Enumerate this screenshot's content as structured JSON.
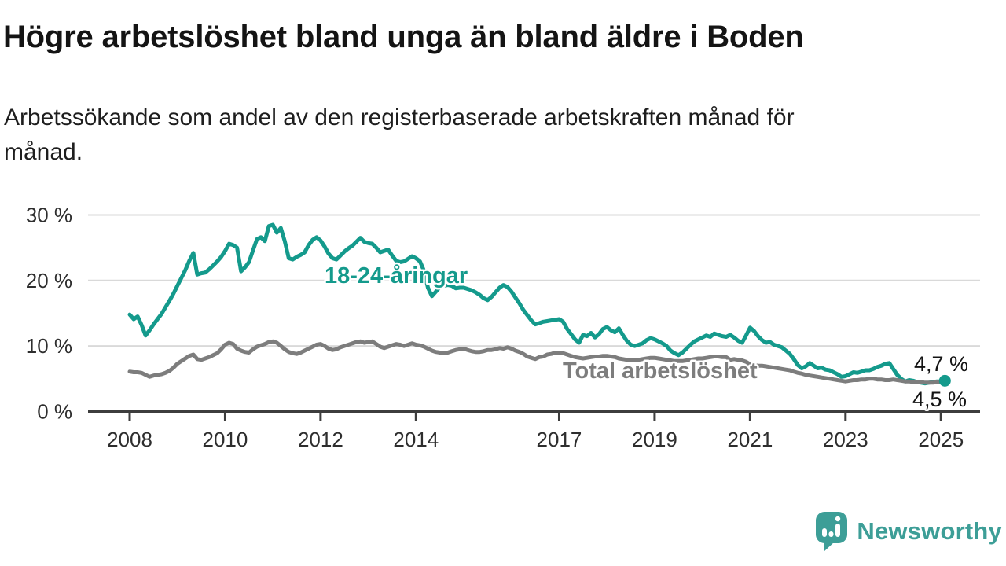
{
  "header": {
    "title": "Högre arbetslöshet bland unga än bland äldre i Boden",
    "subtitle": "Arbetssökande som andel av den registerbaserade arbetskraften månad för\nmånad."
  },
  "logo": {
    "text": "Newsworthy",
    "color": "#3d9e97",
    "icon": "speech-bubble-bar-chart"
  },
  "chart_data": {
    "type": "line",
    "title": "Högre arbetslöshet bland unga än bland äldre i Boden",
    "xlabel": "",
    "ylabel": "Arbetssökande som andel av den registerbaserade arbetskraften",
    "x_axis": {
      "unit": "year",
      "ticks": [
        2008,
        2010,
        2012,
        2014,
        2017,
        2019,
        2021,
        2023,
        2025
      ],
      "range": [
        2007.1,
        2025.85
      ]
    },
    "y_axis": {
      "unit": "percent",
      "ticks": [
        0,
        10,
        20,
        30
      ],
      "tick_labels": [
        "0 %",
        "10 %",
        "20 %",
        "30 %"
      ],
      "range": [
        0,
        31.5
      ],
      "grid": true
    },
    "frequency": "monthly",
    "start_year": 2008,
    "points_per_year": 12,
    "series": [
      {
        "name": "18-24-åringar",
        "color": "#149a8c",
        "end_label": "4,7 %",
        "end_dot": true,
        "values": [
          14.8,
          14.1,
          14.5,
          13.2,
          11.6,
          12.4,
          13.3,
          14.1,
          14.9,
          15.9,
          16.9,
          18.0,
          19.2,
          20.4,
          21.6,
          23.0,
          24.2,
          20.9,
          21.1,
          21.2,
          21.7,
          22.3,
          22.9,
          23.6,
          24.5,
          25.6,
          25.4,
          25.0,
          21.4,
          22.0,
          22.8,
          24.6,
          26.3,
          26.6,
          26.0,
          28.3,
          28.5,
          27.3,
          28.0,
          26.0,
          23.4,
          23.2,
          23.6,
          23.9,
          24.3,
          25.4,
          26.2,
          26.6,
          26.1,
          25.2,
          24.1,
          23.4,
          23.2,
          23.8,
          24.4,
          24.9,
          25.3,
          25.9,
          26.5,
          25.9,
          25.7,
          25.6,
          25.0,
          24.3,
          24.5,
          24.7,
          23.8,
          23.0,
          22.8,
          22.9,
          23.3,
          23.7,
          23.4,
          22.9,
          21.5,
          18.9,
          17.6,
          18.3,
          19.0,
          19.2,
          19.3,
          19.2,
          18.8,
          18.9,
          18.9,
          18.7,
          18.5,
          18.2,
          17.8,
          17.3,
          17.0,
          17.5,
          18.2,
          18.9,
          19.3,
          19.0,
          18.3,
          17.4,
          16.5,
          15.5,
          14.7,
          13.9,
          13.3,
          13.5,
          13.7,
          13.8,
          13.9,
          14.0,
          14.1,
          13.7,
          12.6,
          11.8,
          11.0,
          10.5,
          11.7,
          11.5,
          12.0,
          11.3,
          11.8,
          12.6,
          12.9,
          12.4,
          12.1,
          12.7,
          11.7,
          10.8,
          10.2,
          10.0,
          10.2,
          10.4,
          10.9,
          11.2,
          11.0,
          10.7,
          10.4,
          10.0,
          9.3,
          8.9,
          8.6,
          9.0,
          9.6,
          10.2,
          10.7,
          11.0,
          11.3,
          11.6,
          11.4,
          11.9,
          11.7,
          11.5,
          11.4,
          11.7,
          11.3,
          10.8,
          10.5,
          11.6,
          12.8,
          12.3,
          11.5,
          10.9,
          10.5,
          10.6,
          10.2,
          10.0,
          9.8,
          9.3,
          8.8,
          8.0,
          7.1,
          6.6,
          6.9,
          7.4,
          7.0,
          6.6,
          6.7,
          6.4,
          6.3,
          6.0,
          5.7,
          5.3,
          5.4,
          5.7,
          6.0,
          5.9,
          6.1,
          6.3,
          6.3,
          6.5,
          6.8,
          7.0,
          7.3,
          7.4,
          6.5,
          5.6,
          5.0,
          4.6,
          4.8,
          4.7,
          4.5,
          4.4,
          4.3,
          4.4,
          4.5,
          4.6,
          4.6,
          4.7
        ]
      },
      {
        "name": "Total arbetslöshet",
        "color": "#7d7d7d",
        "end_label": "4,5 %",
        "end_dot": false,
        "values": [
          6.1,
          6.0,
          6.0,
          5.9,
          5.6,
          5.3,
          5.5,
          5.6,
          5.7,
          5.9,
          6.2,
          6.7,
          7.3,
          7.7,
          8.1,
          8.5,
          8.7,
          8.0,
          7.9,
          8.1,
          8.3,
          8.6,
          8.9,
          9.5,
          10.2,
          10.5,
          10.3,
          9.6,
          9.3,
          9.1,
          9.0,
          9.5,
          9.9,
          10.1,
          10.3,
          10.6,
          10.7,
          10.5,
          10.0,
          9.5,
          9.1,
          8.9,
          8.8,
          9.0,
          9.3,
          9.6,
          9.9,
          10.2,
          10.3,
          10.0,
          9.6,
          9.4,
          9.5,
          9.8,
          10.0,
          10.2,
          10.4,
          10.6,
          10.7,
          10.5,
          10.6,
          10.7,
          10.3,
          9.9,
          9.7,
          9.9,
          10.1,
          10.3,
          10.2,
          10.0,
          10.2,
          10.4,
          10.2,
          10.1,
          9.9,
          9.6,
          9.3,
          9.1,
          9.0,
          8.9,
          9.0,
          9.2,
          9.4,
          9.5,
          9.6,
          9.4,
          9.2,
          9.1,
          9.1,
          9.2,
          9.4,
          9.4,
          9.5,
          9.7,
          9.6,
          9.8,
          9.6,
          9.3,
          9.1,
          8.8,
          8.4,
          8.2,
          8.0,
          8.3,
          8.4,
          8.7,
          8.8,
          9.0,
          9.0,
          8.9,
          8.7,
          8.5,
          8.3,
          8.2,
          8.1,
          8.2,
          8.3,
          8.4,
          8.4,
          8.5,
          8.5,
          8.4,
          8.3,
          8.1,
          8.0,
          7.9,
          7.8,
          7.8,
          7.9,
          8.0,
          8.1,
          8.2,
          8.2,
          8.1,
          8.0,
          7.9,
          7.8,
          7.7,
          7.7,
          7.7,
          7.8,
          7.9,
          8.0,
          8.1,
          8.1,
          8.2,
          8.3,
          8.4,
          8.4,
          8.3,
          8.3,
          7.9,
          8.0,
          7.9,
          7.8,
          7.6,
          7.2,
          7.1,
          7.0,
          7.0,
          6.9,
          6.8,
          6.7,
          6.6,
          6.5,
          6.4,
          6.3,
          6.1,
          5.9,
          5.8,
          5.6,
          5.5,
          5.4,
          5.3,
          5.2,
          5.1,
          5.0,
          4.9,
          4.8,
          4.7,
          4.6,
          4.7,
          4.8,
          4.8,
          4.9,
          4.9,
          5.0,
          5.0,
          4.9,
          4.9,
          4.8,
          4.8,
          4.9,
          4.8,
          4.7,
          4.6,
          4.6,
          4.5,
          4.5,
          4.5,
          4.4,
          4.4,
          4.4,
          4.5,
          4.5,
          4.5
        ]
      }
    ],
    "colors": {
      "youth_line": "#149a8c",
      "total_line": "#7d7d7d",
      "grid": "#d9d9d9",
      "axis": "#3d3d3d"
    },
    "legend_position": "inline-labels"
  }
}
